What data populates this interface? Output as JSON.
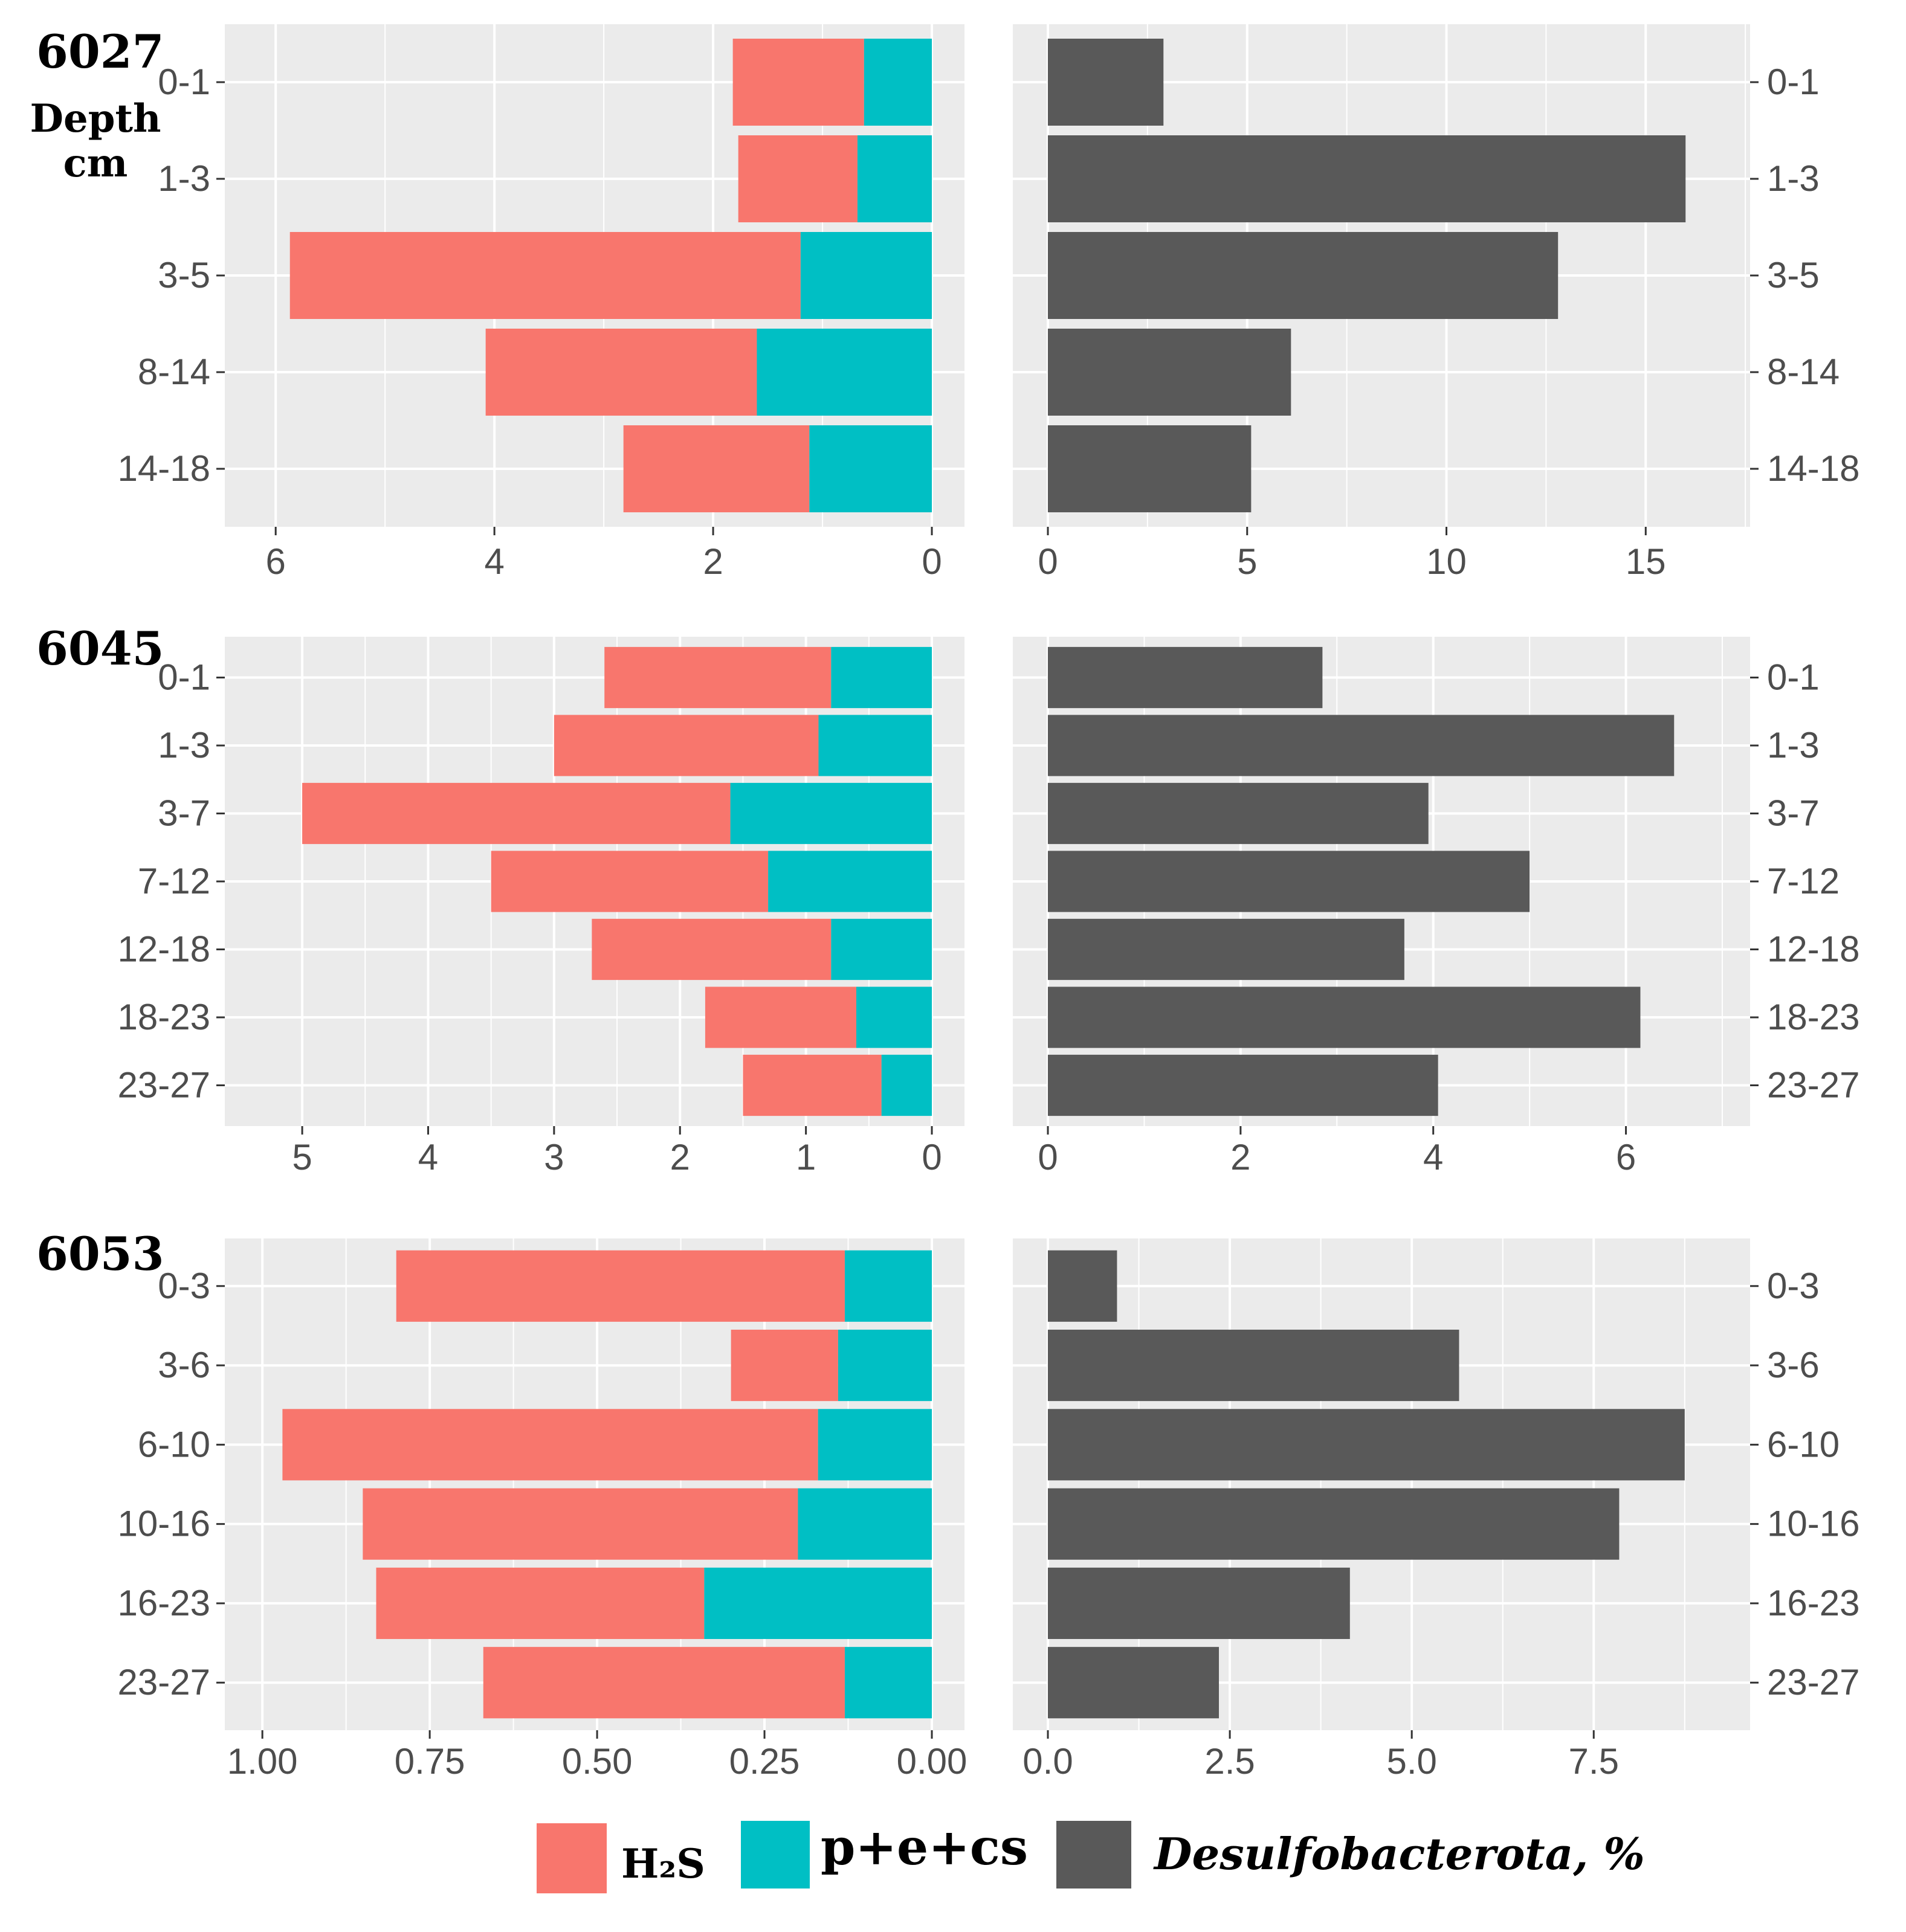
{
  "colors": {
    "h2s": "#F8766D",
    "pecs": "#00BFC4",
    "desulfo": "#595959",
    "panel_bg": "#EBEBEB",
    "grid": "#FFFFFF"
  },
  "depth_axis_label": [
    "Depth",
    "cm"
  ],
  "legend": {
    "h2s": "H₂S",
    "pecs": "p+e+cs",
    "desulfo": "Desulfobacterota, %"
  },
  "chart_data": [
    {
      "type": "bar",
      "station": "6027",
      "categories": [
        "0-1",
        "1-3",
        "3-5",
        "8-14",
        "14-18"
      ],
      "left": {
        "orientation": "horizontal-stacked-reversed",
        "xlim": [
          6.2,
          0
        ],
        "ticks": [
          6,
          4,
          2,
          0
        ],
        "tick_labels": [
          "6",
          "4",
          "2",
          "0"
        ],
        "series": [
          {
            "name": "p+e+cs",
            "values": [
              0.62,
              0.68,
              1.2,
              1.6,
              1.12
            ]
          },
          {
            "name": "H2S",
            "values": [
              1.2,
              1.09,
              4.67,
              2.48,
              1.7
            ]
          }
        ]
      },
      "right": {
        "orientation": "horizontal",
        "xlim": [
          0,
          16.8
        ],
        "ticks": [
          0,
          5,
          10,
          15
        ],
        "tick_labels": [
          "0",
          "5",
          "10",
          "15"
        ],
        "series": [
          {
            "name": "Desulfobacterota, %",
            "values": [
              2.9,
              16.0,
              12.8,
              6.1,
              5.1
            ]
          }
        ]
      }
    },
    {
      "type": "bar",
      "station": "6045",
      "categories": [
        "0-1",
        "1-3",
        "3-7",
        "7-12",
        "12-18",
        "18-23",
        "23-27"
      ],
      "left": {
        "orientation": "horizontal-stacked-reversed",
        "xlim": [
          5.25,
          0
        ],
        "ticks": [
          5,
          4,
          3,
          2,
          1,
          0
        ],
        "tick_labels": [
          "5",
          "4",
          "3",
          "2",
          "1",
          "0"
        ],
        "series": [
          {
            "name": "p+e+cs",
            "values": [
              0.8,
              0.9,
              1.6,
              1.3,
              0.8,
              0.6,
              0.4
            ]
          },
          {
            "name": "H2S",
            "values": [
              1.8,
              2.1,
              3.4,
              2.2,
              1.9,
              1.2,
              1.1
            ]
          }
        ]
      },
      "right": {
        "orientation": "horizontal",
        "xlim": [
          0,
          6.95
        ],
        "ticks": [
          0,
          2,
          4,
          6
        ],
        "tick_labels": [
          "0",
          "2",
          "4",
          "6"
        ],
        "series": [
          {
            "name": "Desulfobacterota, %",
            "values": [
              2.85,
              6.5,
              3.95,
              5.0,
              3.7,
              6.15,
              4.05
            ]
          }
        ]
      }
    },
    {
      "type": "bar",
      "station": "6053",
      "categories": [
        "0-3",
        "3-6",
        "6-10",
        "10-16",
        "16-23",
        "23-27"
      ],
      "left": {
        "orientation": "horizontal-stacked-reversed",
        "xlim": [
          1.02,
          0
        ],
        "ticks": [
          1.0,
          0.75,
          0.5,
          0.25,
          0.0
        ],
        "tick_labels": [
          "1.00",
          "0.75",
          "0.50",
          "0.25",
          "0.00"
        ],
        "series": [
          {
            "name": "p+e+cs",
            "values": [
              0.13,
              0.14,
              0.17,
              0.2,
              0.34,
              0.13
            ]
          },
          {
            "name": "H2S",
            "values": [
              0.67,
              0.16,
              0.8,
              0.65,
              0.49,
              0.54
            ]
          }
        ]
      },
      "right": {
        "orientation": "horizontal",
        "xlim": [
          0,
          9.2
        ],
        "ticks": [
          0,
          2.5,
          5.0,
          7.5
        ],
        "tick_labels": [
          "0.0",
          "2.5",
          "5.0",
          "7.5"
        ],
        "series": [
          {
            "name": "Desulfobacterota, %",
            "values": [
              0.95,
              5.65,
              8.75,
              7.85,
              4.15,
              2.35
            ]
          }
        ]
      }
    }
  ]
}
